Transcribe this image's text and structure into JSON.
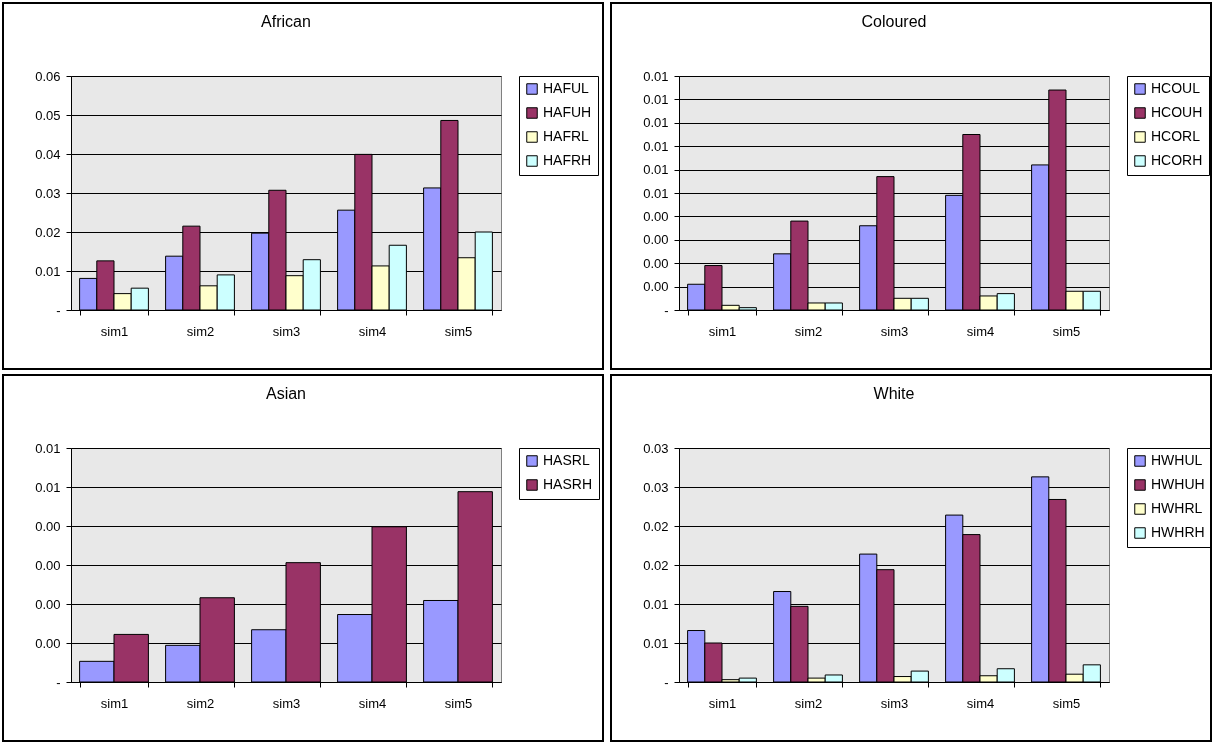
{
  "chart_data": [
    {
      "type": "bar",
      "title": "African",
      "categories": [
        "sim1",
        "sim2",
        "sim3",
        "sim4",
        "sim5"
      ],
      "series": [
        {
          "name": "HAFUL",
          "color": "#9999ff",
          "values": [
            0.0081,
            0.0138,
            0.0197,
            0.0256,
            0.0313
          ]
        },
        {
          "name": "HAFUH",
          "color": "#993366",
          "values": [
            0.0126,
            0.0215,
            0.0307,
            0.0399,
            0.0486
          ]
        },
        {
          "name": "HAFRL",
          "color": "#ffffcc",
          "values": [
            0.0042,
            0.0062,
            0.0088,
            0.0113,
            0.0134
          ]
        },
        {
          "name": "HAFRH",
          "color": "#ccffff",
          "values": [
            0.0056,
            0.009,
            0.0129,
            0.0166,
            0.02
          ]
        }
      ],
      "ylim": [
        0,
        0.06
      ],
      "yticks": [
        {
          "value": 0,
          "label": "-"
        },
        0.01,
        0.02,
        0.03,
        0.04,
        0.05,
        0.06
      ],
      "grid": "y",
      "legend": "right"
    },
    {
      "type": "bar",
      "title": "Coloured",
      "categories": [
        "sim1",
        "sim2",
        "sim3",
        "sim4",
        "sim5"
      ],
      "series": [
        {
          "name": "HCOUL",
          "color": "#9999ff",
          "values": [
            0.0011,
            0.0024,
            0.0036,
            0.0049,
            0.0062
          ]
        },
        {
          "name": "HCOUH",
          "color": "#993366",
          "values": [
            0.0019,
            0.0038,
            0.0057,
            0.0075,
            0.0094
          ]
        },
        {
          "name": "HCORL",
          "color": "#ffffcc",
          "values": [
            0.0002,
            0.0003,
            0.0005,
            0.0006,
            0.0008
          ]
        },
        {
          "name": "HCORH",
          "color": "#ccffff",
          "values": [
            0.0001,
            0.0003,
            0.0005,
            0.0007,
            0.0008
          ]
        }
      ],
      "ylim": [
        0,
        0.01
      ],
      "yticks": [
        {
          "value": 0,
          "label": "-"
        },
        {
          "value": 0.001,
          "label": "0.00"
        },
        {
          "value": 0.002,
          "label": "0.00"
        },
        {
          "value": 0.003,
          "label": "0.00"
        },
        {
          "value": 0.004,
          "label": "0.00"
        },
        {
          "value": 0.005,
          "label": "0.01"
        },
        {
          "value": 0.006,
          "label": "0.01"
        },
        {
          "value": 0.007,
          "label": "0.01"
        },
        {
          "value": 0.008,
          "label": "0.01"
        },
        {
          "value": 0.009,
          "label": "0.01"
        },
        {
          "value": 0.01,
          "label": "0.01"
        }
      ],
      "grid": "y",
      "legend": "right"
    },
    {
      "type": "bar",
      "title": "Asian",
      "categories": [
        "sim1",
        "sim2",
        "sim3",
        "sim4",
        "sim5"
      ],
      "series": [
        {
          "name": "HASRL",
          "color": "#9999ff",
          "values": [
            0.00053,
            0.00094,
            0.00134,
            0.00173,
            0.00209
          ]
        },
        {
          "name": "HASRH",
          "color": "#993366",
          "values": [
            0.00122,
            0.00216,
            0.00306,
            0.00398,
            0.00488
          ]
        }
      ],
      "ylim": [
        0,
        0.006
      ],
      "yticks": [
        {
          "value": 0,
          "label": "-"
        },
        {
          "value": 0.001,
          "label": "0.00"
        },
        {
          "value": 0.002,
          "label": "0.00"
        },
        {
          "value": 0.003,
          "label": "0.00"
        },
        {
          "value": 0.004,
          "label": "0.00"
        },
        {
          "value": 0.005,
          "label": "0.01"
        },
        {
          "value": 0.006,
          "label": "0.01"
        }
      ],
      "grid": "y",
      "legend": "right"
    },
    {
      "type": "bar",
      "title": "White",
      "categories": [
        "sim1",
        "sim2",
        "sim3",
        "sim4",
        "sim5"
      ],
      "series": [
        {
          "name": "HWHUL",
          "color": "#9999ff",
          "values": [
            0.0066,
            0.0116,
            0.0164,
            0.0214,
            0.0263
          ]
        },
        {
          "name": "HWHUH",
          "color": "#993366",
          "values": [
            0.005,
            0.0097,
            0.0144,
            0.0189,
            0.0234
          ]
        },
        {
          "name": "HWHRL",
          "color": "#ffffcc",
          "values": [
            0.0003,
            0.0005,
            0.0007,
            0.0008,
            0.001
          ]
        },
        {
          "name": "HWHRH",
          "color": "#ccffff",
          "values": [
            0.0005,
            0.0009,
            0.0014,
            0.0017,
            0.0022
          ]
        }
      ],
      "ylim": [
        0,
        0.03
      ],
      "yticks": [
        {
          "value": 0,
          "label": "-"
        },
        {
          "value": 0.005,
          "label": "0.01"
        },
        0.01,
        {
          "value": 0.015,
          "label": "0.02"
        },
        0.02,
        {
          "value": 0.025,
          "label": "0.03"
        },
        0.03
      ],
      "grid": "y",
      "legend": "right"
    }
  ]
}
